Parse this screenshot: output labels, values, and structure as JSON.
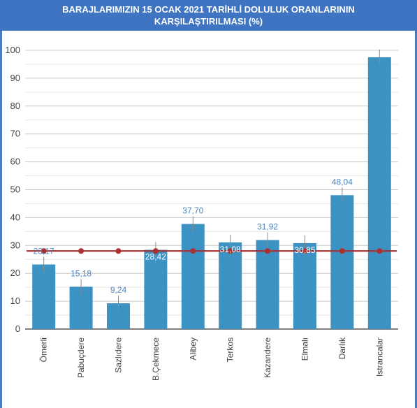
{
  "title": {
    "line1": "BARAJLARIMIZIN 15 OCAK 2021 TARİHLİ DOLULUK ORANLARININ",
    "line2": "KARŞILAŞTIRILMASI (%)"
  },
  "chart_data": {
    "type": "bar",
    "title": "BARAJLARIMIZIN 15 OCAK 2021 TARİHLİ DOLULUK ORANLARININ KARŞILAŞTIRILMASI (%)",
    "categories": [
      "Ömerli",
      "Pabuçdere",
      "Sazlıdere",
      "B.Çekmece",
      "Alibey",
      "Terkos",
      "Kazandere",
      "Elmalı",
      "Darlık",
      "Istrancalar"
    ],
    "series": [
      {
        "type": "bar",
        "values": [
          23.17,
          15.18,
          9.24,
          28.42,
          37.7,
          31.08,
          31.92,
          30.85,
          48.04,
          97.5
        ],
        "labels": [
          "23,17",
          "15,18",
          "9,24",
          "28,42",
          "37,70",
          "31,08",
          "31,92",
          "30,85",
          "48,04",
          ""
        ],
        "color": "#3d92c4"
      },
      {
        "type": "line",
        "values": [
          28,
          28,
          28,
          28,
          28,
          28,
          28,
          28,
          28,
          28
        ],
        "color": "#a83232"
      }
    ],
    "yticks": [
      "0",
      "10",
      "20",
      "30",
      "40",
      "50",
      "60",
      "70",
      "80",
      "90",
      "100"
    ],
    "ylim": [
      0,
      100
    ],
    "grid": true,
    "legend": "none"
  }
}
